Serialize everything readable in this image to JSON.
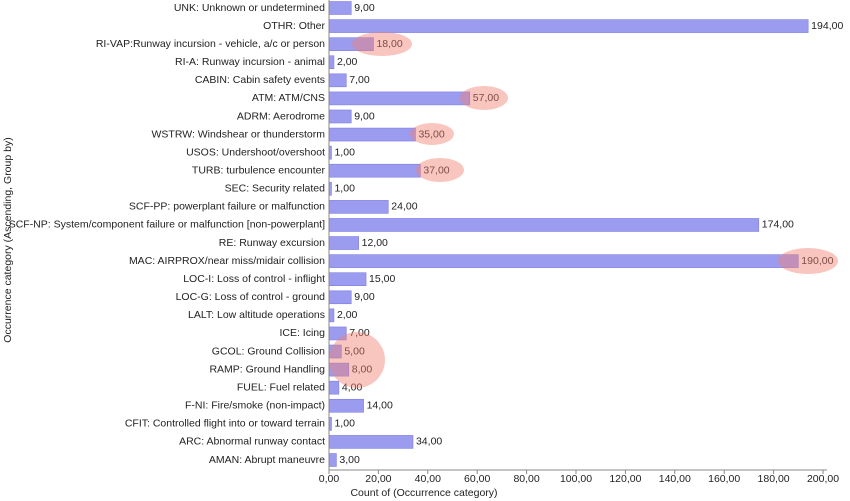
{
  "chart_data": {
    "type": "barh",
    "xlabel": "Count of (Occurrence category)",
    "ylabel": "Occurrence category (Ascending, Group by)",
    "color": "#9b9bf0",
    "categories": [
      "UNK: Unknown or undetermined",
      "OTHR: Other",
      "RI-VAP:Runway incursion - vehicle, a/c or person",
      "RI-A: Runway incursion - animal",
      "CABIN: Cabin safety events",
      "ATM: ATM/CNS",
      "ADRM: Aerodrome",
      "WSTRW: Windshear or thunderstorm",
      "USOS: Undershoot/overshoot",
      "TURB: turbulence encounter",
      "SEC: Security related",
      "SCF-PP: powerplant failure or malfunction",
      "SCF-NP: System/component failure or malfunction [non-powerplant]",
      "RE: Runway excursion",
      "MAC: AIRPROX/near miss/midair collision",
      "LOC-I: Loss of control - inflight",
      "LOC-G: Loss of control - ground",
      "LALT: Low altitude operations",
      "ICE: Icing",
      "GCOL: Ground Collision",
      "RAMP: Ground Handling",
      "FUEL: Fuel related",
      "F-NI: Fire/smoke (non-impact)",
      "CFIT: Controlled flight into or toward terrain",
      "ARC: Abnormal runway contact",
      "AMAN: Abrupt maneuvre"
    ],
    "values": [
      9,
      194,
      18,
      2,
      7,
      57,
      9,
      35,
      1,
      37,
      1,
      24,
      174,
      12,
      190,
      15,
      9,
      2,
      7,
      5,
      8,
      4,
      14,
      1,
      34,
      3
    ],
    "value_labels": [
      "9,00",
      "194,00",
      "18,00",
      "2,00",
      "7,00",
      "57,00",
      "9,00",
      "35,00",
      "1,00",
      "37,00",
      "1,00",
      "24,00",
      "174,00",
      "12,00",
      "190,00",
      "15,00",
      "9,00",
      "2,00",
      "7,00",
      "5,00",
      "8,00",
      "4,00",
      "14,00",
      "1,00",
      "34,00",
      "3,00"
    ],
    "xlim": [
      0,
      200
    ],
    "xticks": [
      {
        "value": 0,
        "label": "0,00"
      },
      {
        "value": 20,
        "label": "20,00"
      },
      {
        "value": 40,
        "label": "40,00"
      },
      {
        "value": 60,
        "label": "60,00"
      },
      {
        "value": 80,
        "label": "80,00"
      },
      {
        "value": 100,
        "label": "100,00"
      },
      {
        "value": 120,
        "label": "120,00"
      },
      {
        "value": 140,
        "label": "140,00"
      },
      {
        "value": 160,
        "label": "160,00"
      },
      {
        "value": 180,
        "label": "180,00"
      },
      {
        "value": 200,
        "label": "200,00"
      }
    ]
  }
}
